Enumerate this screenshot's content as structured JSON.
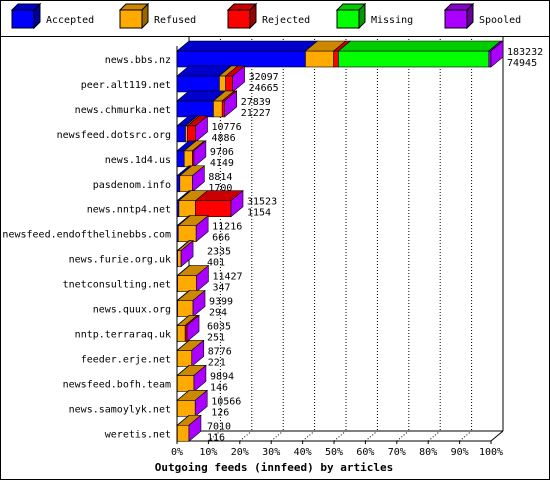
{
  "chart_data": {
    "type": "bar",
    "orientation": "horizontal",
    "stacked": true,
    "title": "",
    "xlabel": "Outgoing feeds (innfeed) by articles",
    "ylabel": "",
    "xlim": [
      0,
      100
    ],
    "x_ticks": [
      "0%",
      "10%",
      "20%",
      "30%",
      "40%",
      "50%",
      "60%",
      "70%",
      "80%",
      "90%",
      "100%"
    ],
    "legend_position": "top",
    "legend": [
      {
        "name": "Accepted",
        "color": "#0000ff"
      },
      {
        "name": "Refused",
        "color": "#ffaa00"
      },
      {
        "name": "Rejected",
        "color": "#ff0000"
      },
      {
        "name": "Missing",
        "color": "#00ff00"
      },
      {
        "name": "Spooled",
        "color": "#aa00ff"
      }
    ],
    "categories": [
      "news.bbs.nz",
      "peer.alt119.net",
      "news.chmurka.net",
      "newsfeed.dotsrc.org",
      "news.1d4.us",
      "pasdenom.info",
      "news.nntp4.net",
      "newsfeed.endofthelinebbs.com",
      "news.furie.org.uk",
      "tnetconsulting.net",
      "news.quux.org",
      "nntp.terraraq.uk",
      "feeder.erje.net",
      "newsfeed.bofh.team",
      "news.samoylyk.net",
      "weretis.net"
    ],
    "offered": [
      183232,
      32097,
      27839,
      10776,
      9706,
      8814,
      31523,
      11216,
      2335,
      11427,
      9399,
      6035,
      8776,
      9894,
      10566,
      7010
    ],
    "accepted_count": [
      74945,
      24665,
      21227,
      4886,
      4149,
      1700,
      1154,
      666,
      401,
      347,
      294,
      251,
      221,
      146,
      126,
      116
    ],
    "series": [
      {
        "name": "Accepted",
        "values": [
          40.9,
          13.5,
          11.6,
          2.7,
          2.3,
          0.9,
          0.6,
          0.4,
          0.2,
          0.2,
          0.2,
          0.1,
          0.1,
          0.1,
          0.1,
          0.1
        ]
      },
      {
        "name": "Refused",
        "values": [
          9.0,
          2.0,
          2.8,
          0.6,
          2.6,
          4.0,
          5.3,
          5.7,
          1.1,
          6.0,
          4.9,
          2.5,
          4.6,
          5.3,
          5.7,
          3.7
        ]
      },
      {
        "name": "Rejected",
        "values": [
          1.5,
          2.2,
          0.8,
          2.6,
          0.1,
          0.0,
          11.3,
          0.0,
          0.0,
          0.0,
          0.0,
          0.6,
          0.0,
          0.0,
          0.0,
          0.0
        ]
      },
      {
        "name": "Missing",
        "values": [
          47.9,
          0.0,
          0.0,
          0.0,
          0.0,
          0.0,
          0.0,
          0.0,
          0.0,
          0.0,
          0.0,
          0.0,
          0.0,
          0.0,
          0.0,
          0.0
        ]
      },
      {
        "name": "Spooled",
        "values": [
          0.7,
          0.0,
          0.0,
          0.0,
          0.0,
          0.0,
          0.0,
          0.0,
          0.0,
          0.0,
          0.0,
          0.0,
          0.0,
          0.0,
          0.0,
          0.0
        ]
      }
    ]
  }
}
